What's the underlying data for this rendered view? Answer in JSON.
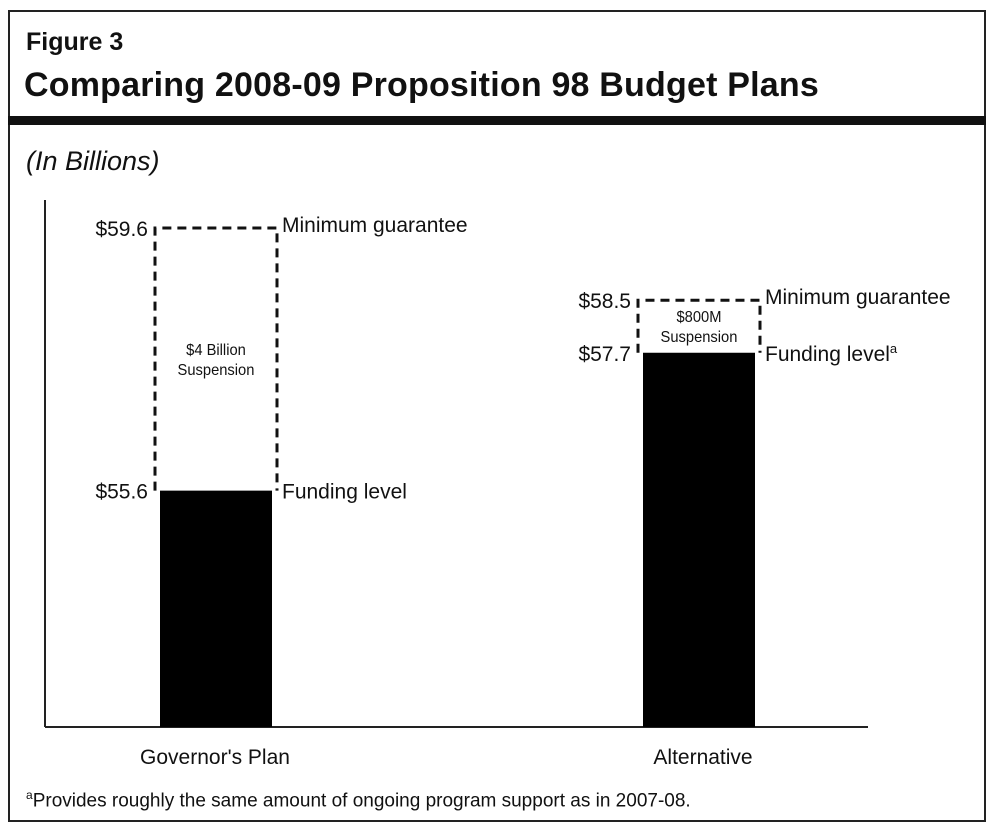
{
  "figure_label": "Figure 3",
  "title": "Comparing 2008-09 Proposition 98 Budget Plans",
  "units": "(In Billions)",
  "footnote": {
    "marker": "a",
    "text": "Provides roughly the same amount of ongoing program support as in 2007-08."
  },
  "chart_data": {
    "type": "bar",
    "categories": [
      "Governor's Plan",
      "Alternative"
    ],
    "series": [
      {
        "name": "Funding level",
        "values": [
          55.6,
          57.7
        ]
      },
      {
        "name": "Minimum guarantee",
        "values": [
          59.6,
          58.5
        ]
      }
    ],
    "bars": [
      {
        "category": "Governor's Plan",
        "funding_value_label": "$55.6",
        "funding_label": "Funding level",
        "funding_label_sup": "",
        "guarantee_value_label": "$59.6",
        "guarantee_label": "Minimum guarantee",
        "suspension_label_lines": [
          "$4 Billion",
          "Suspension"
        ]
      },
      {
        "category": "Alternative",
        "funding_value_label": "$57.7",
        "funding_label": "Funding level",
        "funding_label_sup": "a",
        "guarantee_value_label": "$58.5",
        "guarantee_label": "Minimum guarantee",
        "suspension_label_lines": [
          "$800M",
          "Suspension"
        ]
      }
    ],
    "fill_color": "#000000",
    "grid": false,
    "legend": "none"
  }
}
